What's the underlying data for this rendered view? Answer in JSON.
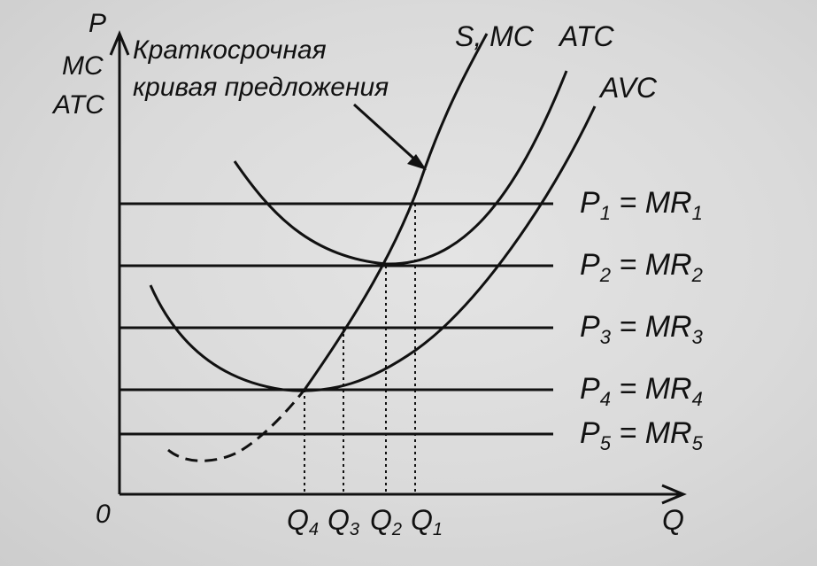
{
  "axes": {
    "y_label_lines": [
      "P",
      "MC",
      "ATC"
    ],
    "x_label": "Q",
    "origin": "0"
  },
  "annotation": {
    "lines": [
      "Краткосрочная",
      "кривая предложения"
    ]
  },
  "curves": {
    "supply_mc": "S, MC",
    "atc": "ATC",
    "avc": "AVC"
  },
  "prices": [
    {
      "p": "P",
      "sub": "1",
      "mr": "MR",
      "mr_sub": "1"
    },
    {
      "p": "P",
      "sub": "2",
      "mr": "MR",
      "mr_sub": "2"
    },
    {
      "p": "P",
      "sub": "3",
      "mr": "MR",
      "mr_sub": "3"
    },
    {
      "p": "P",
      "sub": "4",
      "mr": "MR",
      "mr_sub": "4"
    },
    {
      "p": "P",
      "sub": "5",
      "mr": "MR",
      "mr_sub": "5"
    }
  ],
  "quantities": [
    {
      "q": "Q",
      "sub": "4"
    },
    {
      "q": "Q",
      "sub": "3"
    },
    {
      "q": "Q",
      "sub": "2"
    },
    {
      "q": "Q",
      "sub": "1"
    }
  ],
  "colors": {
    "ink": "#111111",
    "paper": "#dcdcdc"
  }
}
